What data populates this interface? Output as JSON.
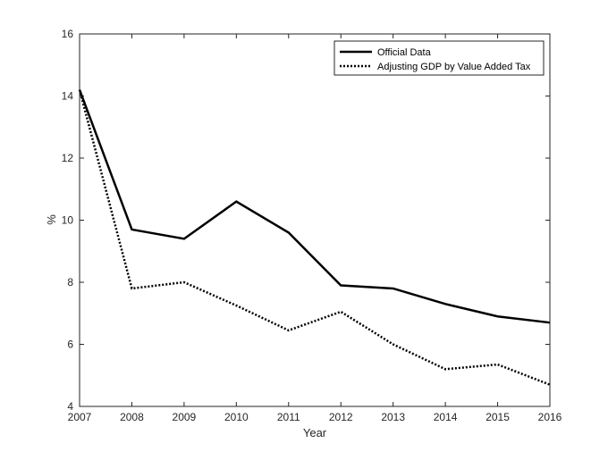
{
  "chart_data": {
    "type": "line",
    "title": "",
    "xlabel": "Year",
    "ylabel": "%",
    "x": [
      2007,
      2008,
      2009,
      2010,
      2011,
      2012,
      2013,
      2014,
      2015,
      2016
    ],
    "xlim": [
      2007,
      2016
    ],
    "ylim": [
      4,
      16
    ],
    "xticks": [
      "2007",
      "2008",
      "2009",
      "2010",
      "2011",
      "2012",
      "2013",
      "2014",
      "2015",
      "2016"
    ],
    "yticks": [
      "4",
      "6",
      "8",
      "10",
      "12",
      "14",
      "16"
    ],
    "grid": false,
    "legend_position": "top-right",
    "series": [
      {
        "name": "Official Data",
        "style": "solid",
        "color": "#000000",
        "values": [
          14.2,
          9.7,
          9.4,
          10.6,
          9.6,
          7.9,
          7.8,
          7.3,
          6.9,
          6.7
        ]
      },
      {
        "name": "Adjusting GDP by Value Added Tax",
        "style": "dotted",
        "color": "#000000",
        "values": [
          14.2,
          7.8,
          8.0,
          7.25,
          6.45,
          7.05,
          6.0,
          5.2,
          5.35,
          4.7
        ]
      }
    ]
  }
}
